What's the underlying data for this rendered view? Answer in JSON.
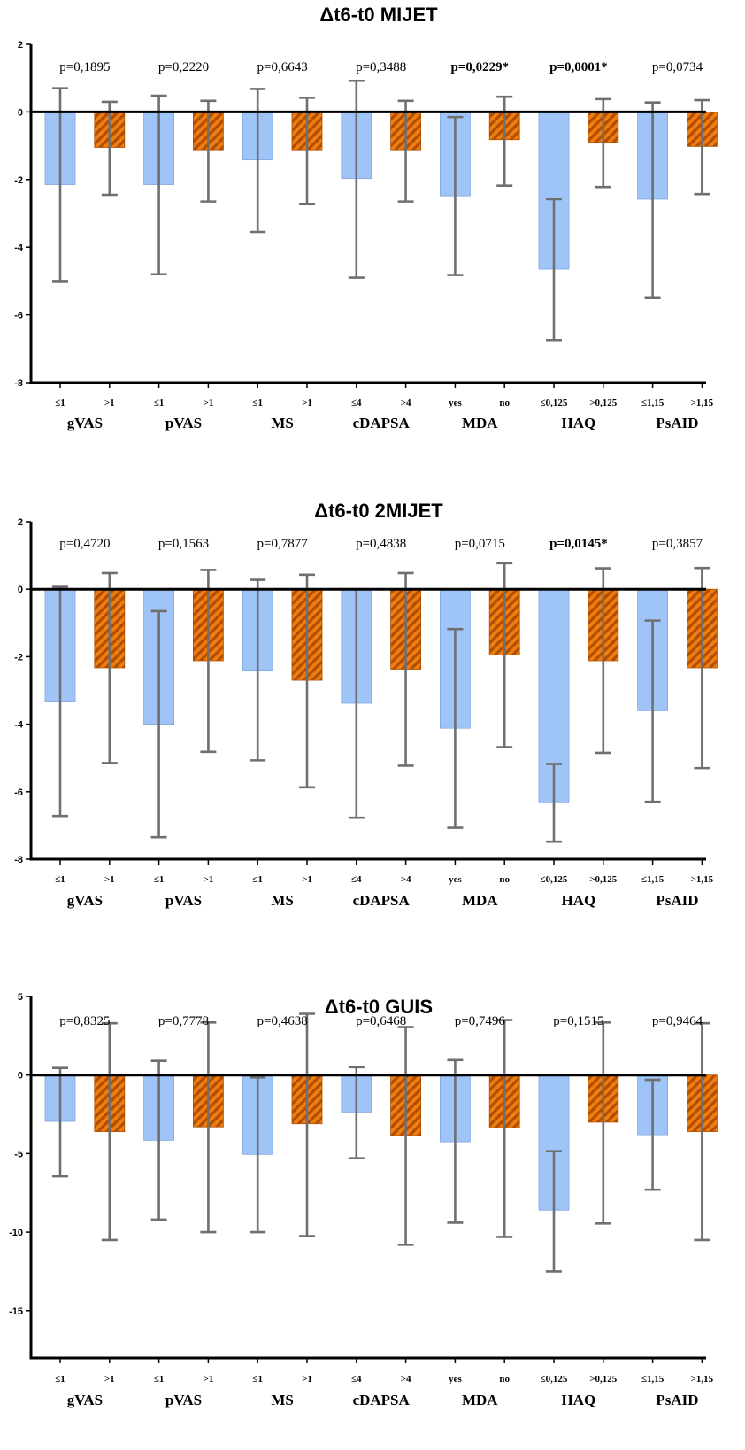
{
  "colors": {
    "group_low": "#9fc5f8",
    "group_low_edge": "#7ea6dc",
    "group_high": "#f07d10",
    "group_high_stripe": "#b04e00",
    "error_bar": "#6f6f6f",
    "axis": "#000000"
  },
  "chart_data": [
    {
      "type": "bar",
      "title": "Δt6-t0 MIJET",
      "ylim": [
        -8,
        2
      ],
      "yticks": [
        -8,
        -6,
        -4,
        -2,
        0,
        2
      ],
      "groups": [
        "gVAS",
        "pVAS",
        "MS",
        "cDAPSA",
        "MDA",
        "HAQ",
        "PsAID"
      ],
      "categories": [
        "≤1",
        ">1",
        "≤1",
        ">1",
        "≤1",
        ">1",
        "≤4",
        ">4",
        "yes",
        "no",
        "≤0,125",
        ">0,125",
        "≤1,15",
        ">1,15"
      ],
      "values": [
        -2.15,
        -1.05,
        -2.15,
        -1.12,
        -1.42,
        -1.12,
        -1.97,
        -1.12,
        -2.48,
        -0.82,
        -4.65,
        -0.9,
        -2.58,
        -1.02
      ],
      "err_upper": [
        0.7,
        0.3,
        0.48,
        0.33,
        0.68,
        0.42,
        0.92,
        0.33,
        -0.15,
        0.45,
        -2.58,
        0.38,
        0.28,
        0.35
      ],
      "err_lower": [
        -5.0,
        -2.45,
        -4.8,
        -2.65,
        -3.55,
        -2.72,
        -4.9,
        -2.65,
        -4.82,
        -2.18,
        -6.75,
        -2.22,
        -5.48,
        -2.43
      ],
      "p_values": [
        "p=0,1895",
        "p=0,2220",
        "p=0,6643",
        "p=0,3488",
        "p=0,0229*",
        "p=0,0001*",
        "p=0,0734"
      ],
      "p_significant": [
        false,
        false,
        false,
        false,
        true,
        true,
        false
      ]
    },
    {
      "type": "bar",
      "title": "Δt6-t0 2MIJET",
      "ylim": [
        -8,
        2
      ],
      "yticks": [
        -8,
        -6,
        -4,
        -2,
        0,
        2
      ],
      "groups": [
        "gVAS",
        "pVAS",
        "MS",
        "cDAPSA",
        "MDA",
        "HAQ",
        "PsAID"
      ],
      "categories": [
        "≤1",
        ">1",
        "≤1",
        ">1",
        "≤1",
        ">1",
        "≤4",
        ">4",
        "yes",
        "no",
        "≤0,125",
        ">0,125",
        "≤1,15",
        ">1,15"
      ],
      "values": [
        -3.32,
        -2.33,
        -4.0,
        -2.12,
        -2.4,
        -2.7,
        -3.38,
        -2.37,
        -4.12,
        -1.95,
        -6.33,
        -2.12,
        -3.6,
        -2.33
      ],
      "err_upper": [
        0.07,
        0.48,
        -0.65,
        0.57,
        0.28,
        0.43,
        0.0,
        0.48,
        -1.18,
        0.77,
        -5.18,
        0.62,
        -0.93,
        0.63
      ],
      "err_lower": [
        -6.72,
        -5.15,
        -7.35,
        -4.82,
        -5.07,
        -5.87,
        -6.77,
        -5.23,
        -7.07,
        -4.68,
        -7.48,
        -4.85,
        -6.3,
        -5.3
      ],
      "p_values": [
        "p=0,4720",
        "p=0,1563",
        "p=0,7877",
        "p=0,4838",
        "p=0,0715",
        "p=0,0145*",
        "p=0,3857"
      ],
      "p_significant": [
        false,
        false,
        false,
        false,
        false,
        true,
        false
      ]
    },
    {
      "type": "bar",
      "title": "Δt6-t0 GUIS",
      "ylim": [
        -18,
        5
      ],
      "yticks": [
        -15,
        -10,
        -5,
        0,
        5
      ],
      "groups": [
        "gVAS",
        "pVAS",
        "MS",
        "cDAPSA",
        "MDA",
        "HAQ",
        "PsAID"
      ],
      "categories": [
        "≤1",
        ">1",
        "≤1",
        ">1",
        "≤1",
        ">1",
        "≤4",
        ">4",
        "yes",
        "no",
        "≤0,125",
        ">0,125",
        "≤1,15",
        ">1,15"
      ],
      "values": [
        -2.95,
        -3.6,
        -4.15,
        -3.3,
        -5.05,
        -3.1,
        -2.35,
        -3.85,
        -4.25,
        -3.35,
        -8.6,
        -3.0,
        -3.8,
        -3.6
      ],
      "err_upper": [
        0.45,
        3.3,
        0.9,
        3.35,
        -0.15,
        3.9,
        0.5,
        3.05,
        0.95,
        3.5,
        -4.85,
        3.35,
        -0.3,
        3.3
      ],
      "err_lower": [
        -6.45,
        -10.5,
        -9.2,
        -10.0,
        -10.0,
        -10.25,
        -5.3,
        -10.8,
        -9.4,
        -10.3,
        -12.5,
        -9.45,
        -7.3,
        -10.5
      ],
      "p_values": [
        "p=0,8325",
        "p=0,7778",
        "p=0,4638",
        "p=0,6468",
        "p=0,7496",
        "p=0,1515",
        "p=0,9464"
      ],
      "p_significant": [
        false,
        false,
        false,
        false,
        false,
        false,
        false
      ]
    }
  ]
}
